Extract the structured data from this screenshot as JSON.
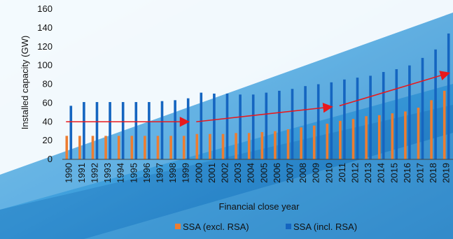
{
  "chart_data": {
    "type": "bar",
    "title": "",
    "xlabel": "Financial close year",
    "ylabel": "Installed capacity (GW)",
    "ylim": [
      0,
      160
    ],
    "yticks": [
      0,
      20,
      40,
      60,
      80,
      100,
      120,
      140,
      160
    ],
    "grid": false,
    "legend_position": "bottom",
    "categories": [
      "1990",
      "1991",
      "1992",
      "1993",
      "1994",
      "1995",
      "1996",
      "1997",
      "1998",
      "1999",
      "2000",
      "2001",
      "2002",
      "2003",
      "2004",
      "2005",
      "2006",
      "2007",
      "2008",
      "2009",
      "2010",
      "2011",
      "2012",
      "2013",
      "2014",
      "2015",
      "2016",
      "2017",
      "2018",
      "2019"
    ],
    "series": [
      {
        "name": "SSA (excl. RSA)",
        "color": "#ED7D31",
        "values": [
          25,
          25,
          25,
          25,
          25,
          25,
          25,
          25,
          25,
          25,
          27,
          27,
          27,
          28,
          28,
          29,
          30,
          32,
          34,
          36,
          38,
          41,
          43,
          46,
          47,
          49,
          51,
          55,
          63,
          73
        ]
      },
      {
        "name": "SSA (incl. RSA)",
        "color": "#1565C0",
        "values": [
          57,
          61,
          61,
          61,
          61,
          61,
          61,
          62,
          63,
          65,
          71,
          70,
          70,
          69,
          69,
          71,
          73,
          75,
          78,
          80,
          82,
          85,
          87,
          89,
          93,
          96,
          100,
          108,
          117,
          134
        ]
      }
    ],
    "annotations": {
      "arrow_color": "#E8191C",
      "arrows": [
        {
          "from": [
            "1990",
            40
          ],
          "to": [
            "1999",
            40
          ]
        },
        {
          "from": [
            "2000",
            40
          ],
          "to": [
            "2010",
            56
          ]
        },
        {
          "from": [
            "2011",
            57
          ],
          "to": [
            "2019",
            92
          ]
        }
      ]
    }
  }
}
